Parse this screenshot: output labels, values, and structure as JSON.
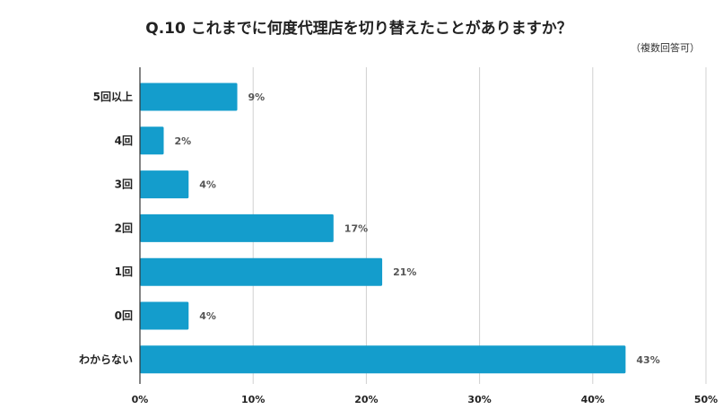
{
  "chart_data": {
    "type": "bar",
    "orientation": "horizontal",
    "title": "Q.10 これまでに何度代理店を切り替えたことがありますか？",
    "note": "（複数回答可）",
    "categories": [
      "5回以上",
      "4回",
      "3回",
      "2回",
      "1回",
      "0回",
      "わからない"
    ],
    "values": [
      8.6,
      2.1,
      4.3,
      17.1,
      21.4,
      4.3,
      42.9
    ],
    "value_labels": [
      "9%",
      "2%",
      "4%",
      "17%",
      "21%",
      "4%",
      "43%"
    ],
    "xlim": [
      0,
      50
    ],
    "x_ticks": [
      0,
      10,
      20,
      30,
      40,
      50
    ],
    "x_tick_labels": [
      "0%",
      "10%",
      "20%",
      "30%",
      "40%",
      "50%"
    ],
    "grid": true,
    "bar_color": "#149dcc",
    "grid_color": "#d0d0d0",
    "axis_color": "#333333"
  }
}
